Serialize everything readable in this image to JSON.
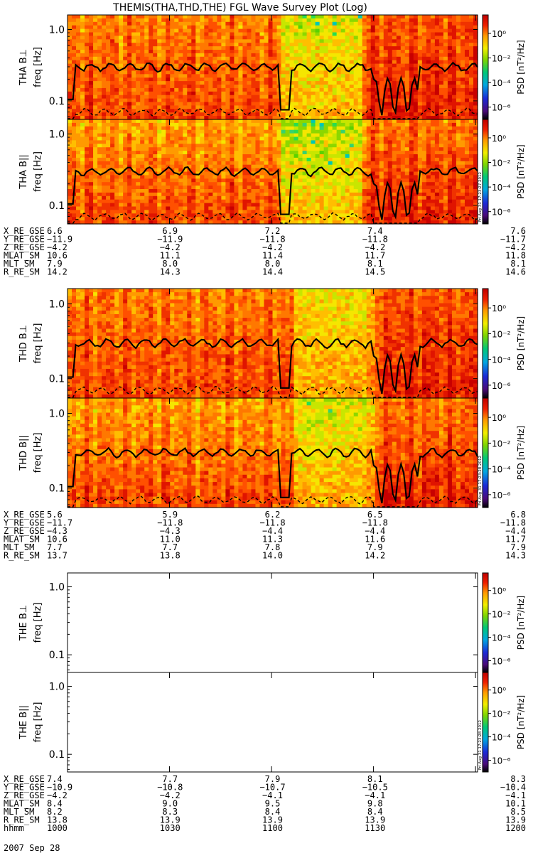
{
  "title": "THEMIS(THA,THD,THE) FGL Wave Survey Plot (Log)",
  "date_label": "2007 Sep 28",
  "colorbar": {
    "label": "PSD [nT²/Hz]",
    "ticks": [
      "10⁰",
      "10⁻²",
      "10⁻⁴",
      "10⁻⁶"
    ],
    "tick_values": [
      0,
      -2,
      -4,
      -6
    ],
    "log_range": [
      -7,
      1.5
    ]
  },
  "freq_axis": {
    "label": "freq [Hz]",
    "ticks": [
      "1.0",
      "0.1"
    ],
    "tick_values": [
      1.0,
      0.1
    ],
    "log_range": [
      0.055,
      1.6
    ]
  },
  "stamps": [
    "Fri Aug 31 17:23:27 2012",
    "Fri Aug 31 17:23:28 2012",
    "Fri Aug 31 17:23:28 2012"
  ],
  "chart_data": [
    {
      "type": "heatmap",
      "probe": "THA",
      "panels": [
        {
          "label": "THA B⊥",
          "has_data": true
        },
        {
          "label": "THA B||",
          "has_data": true
        }
      ],
      "ephemeris": [
        {
          "name": "X_RE_GSE",
          "values": [
            "6.6",
            "6.9",
            "7.2",
            "7.4",
            "7.6"
          ]
        },
        {
          "name": "Y_RE_GSE",
          "values": [
            "−11.9",
            "−11.9",
            "−11.8",
            "−11.8",
            "−11.7"
          ]
        },
        {
          "name": "Z_RE_GSE",
          "values": [
            "−4.2",
            "−4.2",
            "−4.2",
            "−4.2",
            "−4.2"
          ]
        },
        {
          "name": "MLAT_SM",
          "values": [
            "10.6",
            "11.1",
            "11.4",
            "11.7",
            "11.8"
          ]
        },
        {
          "name": "MLT_SM",
          "values": [
            "7.9",
            "8.0",
            "8.0",
            "8.1",
            "8.1"
          ]
        },
        {
          "name": "R_RE_SM",
          "values": [
            "14.2",
            "14.3",
            "14.4",
            "14.5",
            "14.6"
          ]
        }
      ]
    },
    {
      "type": "heatmap",
      "probe": "THD",
      "panels": [
        {
          "label": "THD B⊥",
          "has_data": true
        },
        {
          "label": "THD B||",
          "has_data": true
        }
      ],
      "ephemeris": [
        {
          "name": "X_RE_GSE",
          "values": [
            "5.6",
            "5.9",
            "6.2",
            "6.5",
            "6.8"
          ]
        },
        {
          "name": "Y_RE_GSE",
          "values": [
            "−11.7",
            "−11.8",
            "−11.8",
            "−11.8",
            "−11.8"
          ]
        },
        {
          "name": "Z_RE_GSE",
          "values": [
            "−4.3",
            "−4.3",
            "−4.4",
            "−4.4",
            "−4.4"
          ]
        },
        {
          "name": "MLAT_SM",
          "values": [
            "10.6",
            "11.0",
            "11.3",
            "11.6",
            "11.7"
          ]
        },
        {
          "name": "MLT_SM",
          "values": [
            "7.7",
            "7.7",
            "7.8",
            "7.9",
            "7.9"
          ]
        },
        {
          "name": "R_RE_SM",
          "values": [
            "13.7",
            "13.8",
            "14.0",
            "14.2",
            "14.3"
          ]
        }
      ]
    },
    {
      "type": "heatmap",
      "probe": "THE",
      "panels": [
        {
          "label": "THE B⊥",
          "has_data": false
        },
        {
          "label": "THE B||",
          "has_data": false
        }
      ],
      "ephemeris": [
        {
          "name": "X_RE_GSE",
          "values": [
            "7.4",
            "7.7",
            "7.9",
            "8.1",
            "8.3"
          ]
        },
        {
          "name": "Y_RE_GSE",
          "values": [
            "−10.9",
            "−10.8",
            "−10.7",
            "−10.5",
            "−10.4"
          ]
        },
        {
          "name": "Z_RE_GSE",
          "values": [
            "−4.2",
            "−4.2",
            "−4.1",
            "−4.1",
            "−4.1"
          ]
        },
        {
          "name": "MLAT_SM",
          "values": [
            "8.4",
            "9.0",
            "9.5",
            "9.8",
            "10.1"
          ]
        },
        {
          "name": "MLT_SM",
          "values": [
            "8.2",
            "8.3",
            "8.4",
            "8.4",
            "8.5"
          ]
        },
        {
          "name": "R_RE_SM",
          "values": [
            "13.8",
            "13.9",
            "13.9",
            "13.9",
            "13.9"
          ]
        },
        {
          "name": "hhmm",
          "values": [
            "1000",
            "1030",
            "1100",
            "1130",
            "1200"
          ]
        }
      ]
    }
  ]
}
